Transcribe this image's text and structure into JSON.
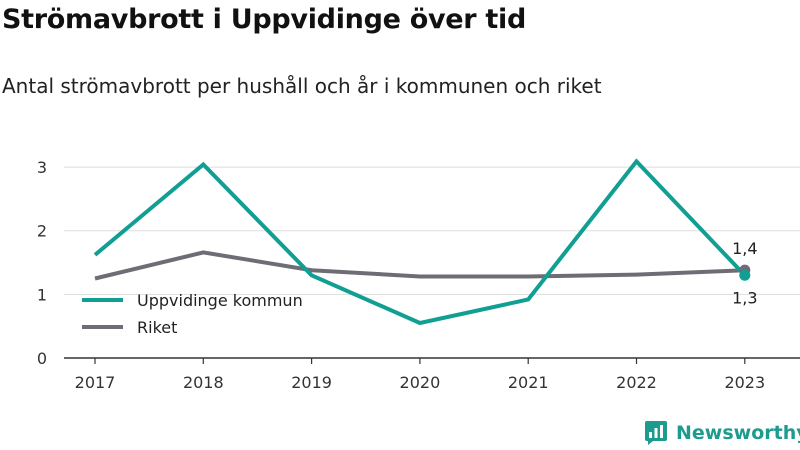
{
  "title": "Strömavbrott i Uppvidinge över tid",
  "subtitle": "Antal strömavbrott per hushåll och år i kommunen och riket",
  "brand": {
    "name": "Newsworthy",
    "logo_icon": "newsworthy-logo-icon"
  },
  "colors": {
    "kommun": "#119e93",
    "riket": "#6e6c74",
    "grid": "#dddddd",
    "axis": "#333333"
  },
  "chart_data": {
    "type": "line",
    "title": "Strömavbrott i Uppvidinge över tid",
    "subtitle": "Antal strömavbrott per hushåll och år i kommunen och riket",
    "x": [
      "2017",
      "2018",
      "2019",
      "2020",
      "2021",
      "2022",
      "2023"
    ],
    "ylim": [
      0,
      3.3
    ],
    "yticks": [
      0,
      1,
      2,
      3
    ],
    "grid": true,
    "legend_position": "bottom-left",
    "series": [
      {
        "name": "Uppvidinge kommun",
        "values": [
          1.62,
          3.04,
          1.3,
          0.55,
          0.92,
          3.09,
          1.3
        ],
        "end_label": "1,3"
      },
      {
        "name": "Riket",
        "values": [
          1.25,
          1.66,
          1.38,
          1.28,
          1.28,
          1.31,
          1.38
        ],
        "end_label": "1,4"
      }
    ]
  }
}
